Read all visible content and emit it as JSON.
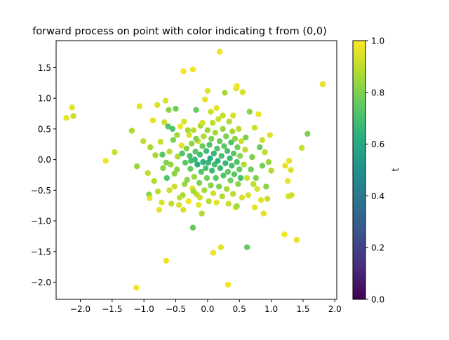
{
  "chart_data": {
    "type": "scatter",
    "title": "forward process on point with color indicating t from (0,0)",
    "xlabel": "",
    "ylabel": "",
    "xlim": [
      -2.38,
      2.03
    ],
    "ylim": [
      -2.28,
      1.94
    ],
    "xticks": [
      -2.0,
      -1.5,
      -1.0,
      -0.5,
      0.0,
      0.5,
      1.0,
      1.5,
      2.0
    ],
    "xtick_labels": [
      "−2.0",
      "−1.5",
      "−1.0",
      "−0.5",
      "0.0",
      "0.5",
      "1.0",
      "1.5",
      "2.0"
    ],
    "yticks": [
      -2.0,
      -1.5,
      -1.0,
      -0.5,
      0.0,
      0.5,
      1.0,
      1.5
    ],
    "ytick_labels": [
      "−2.0",
      "−1.5",
      "−1.0",
      "−0.5",
      "0.0",
      "0.5",
      "1.0",
      "1.5"
    ],
    "grid": false,
    "colormap": "viridis",
    "colorbar": {
      "label": "t",
      "range": [
        0.0,
        1.0
      ],
      "ticks": [
        0.0,
        0.2,
        0.4,
        0.6,
        0.8,
        1.0
      ],
      "tick_labels": [
        "0.0",
        "0.2",
        "0.4",
        "0.6",
        "0.8",
        "1.0"
      ]
    },
    "points": [
      [
        -2.22,
        0.68,
        0.96
      ],
      [
        -2.13,
        0.85,
        0.96
      ],
      [
        -2.11,
        0.71,
        0.92
      ],
      [
        -1.6,
        -0.02,
        0.98
      ],
      [
        -1.46,
        0.12,
        0.92
      ],
      [
        -1.19,
        0.47,
        0.88
      ],
      [
        -1.11,
        -0.11,
        0.84
      ],
      [
        -1.07,
        0.87,
        0.96
      ],
      [
        -1.01,
        0.3,
        0.9
      ],
      [
        -0.94,
        -0.22,
        0.9
      ],
      [
        -0.92,
        -0.57,
        0.82
      ],
      [
        -0.91,
        -0.63,
        0.96
      ],
      [
        -0.9,
        0.2,
        0.86
      ],
      [
        -0.86,
        0.64,
        0.96
      ],
      [
        -0.84,
        -0.35,
        0.88
      ],
      [
        -0.82,
        0.07,
        0.86
      ],
      [
        -0.79,
        0.89,
        0.94
      ],
      [
        -0.78,
        -0.52,
        0.9
      ],
      [
        -0.76,
        -0.82,
        0.96
      ],
      [
        -0.74,
        0.29,
        0.92
      ],
      [
        -0.72,
        -0.7,
        0.94
      ],
      [
        -0.7,
        -0.14,
        0.82
      ],
      [
        -0.68,
        0.61,
        0.92
      ],
      [
        -0.66,
        0.96,
        0.94
      ],
      [
        -0.64,
        -0.3,
        0.72
      ],
      [
        -0.62,
        0.54,
        0.72
      ],
      [
        -0.61,
        0.81,
        0.82
      ],
      [
        -0.6,
        0.13,
        0.9
      ],
      [
        -0.58,
        -0.08,
        0.84
      ],
      [
        -0.57,
        -0.72,
        0.9
      ],
      [
        -0.55,
        0.5,
        0.72
      ],
      [
        -0.54,
        0.32,
        0.8
      ],
      [
        -0.52,
        -0.44,
        0.92
      ],
      [
        -0.5,
        0.83,
        0.78
      ],
      [
        -0.48,
        -0.16,
        0.82
      ],
      [
        -0.47,
        0.05,
        0.88
      ],
      [
        -0.45,
        -0.74,
        0.94
      ],
      [
        -0.43,
        0.54,
        0.98
      ],
      [
        -0.41,
        0.23,
        0.96
      ],
      [
        -0.39,
        -0.58,
        0.86
      ],
      [
        -0.38,
        -0.82,
        0.94
      ],
      [
        -0.37,
        0.62,
        0.94
      ],
      [
        -0.35,
        -0.05,
        0.74
      ],
      [
        -0.33,
        0.18,
        0.8
      ],
      [
        -0.32,
        -0.33,
        0.82
      ],
      [
        -0.3,
        -0.68,
        0.98
      ],
      [
        -0.29,
        0.4,
        0.94
      ],
      [
        -0.28,
        0.06,
        0.7
      ],
      [
        -0.27,
        -0.15,
        0.76
      ],
      [
        -0.25,
        0.26,
        0.82
      ],
      [
        -0.24,
        -0.47,
        0.96
      ],
      [
        -0.23,
        -1.11,
        0.76
      ],
      [
        -0.22,
        0.48,
        0.9
      ],
      [
        -0.21,
        -0.28,
        0.84
      ],
      [
        -0.2,
        0.0,
        0.66
      ],
      [
        -0.19,
        0.13,
        0.74
      ],
      [
        -0.18,
        0.81,
        0.76
      ],
      [
        -0.17,
        -0.57,
        0.9
      ],
      [
        -0.16,
        -0.08,
        0.62
      ],
      [
        -0.15,
        0.3,
        0.92
      ],
      [
        -0.14,
        -0.74,
        0.96
      ],
      [
        -0.13,
        -0.38,
        0.8
      ],
      [
        -0.12,
        0.08,
        0.7
      ],
      [
        -0.11,
        0.55,
        0.86
      ],
      [
        -0.1,
        -0.2,
        0.72
      ],
      [
        -0.09,
        -0.88,
        0.88
      ],
      [
        -0.08,
        0.22,
        0.76
      ],
      [
        -0.07,
        -0.04,
        0.64
      ],
      [
        -0.06,
        0.38,
        0.88
      ],
      [
        -0.05,
        -0.5,
        0.86
      ],
      [
        -0.04,
        0.98,
        0.96
      ],
      [
        -0.03,
        -0.14,
        0.7
      ],
      [
        -0.02,
        0.14,
        0.68
      ],
      [
        -0.01,
        -0.3,
        0.78
      ],
      [
        0.0,
        0.48,
        0.84
      ],
      [
        0.01,
        -0.05,
        0.66
      ],
      [
        0.02,
        -0.68,
        0.9
      ],
      [
        0.03,
        0.24,
        0.72
      ],
      [
        0.04,
        0.02,
        0.62
      ],
      [
        0.05,
        -0.42,
        0.82
      ],
      [
        0.06,
        0.34,
        0.8
      ],
      [
        0.07,
        -0.18,
        0.68
      ],
      [
        0.08,
        0.6,
        0.9
      ],
      [
        0.09,
        -0.55,
        0.92
      ],
      [
        0.1,
        0.1,
        0.66
      ],
      [
        0.11,
        -0.08,
        0.7
      ],
      [
        0.12,
        0.44,
        0.86
      ],
      [
        0.13,
        -0.3,
        0.74
      ],
      [
        0.14,
        -0.7,
        0.96
      ],
      [
        0.15,
        0.18,
        0.72
      ],
      [
        0.16,
        -0.02,
        0.64
      ],
      [
        0.17,
        0.66,
        0.92
      ],
      [
        0.18,
        -0.44,
        0.8
      ],
      [
        0.19,
        0.3,
        0.76
      ],
      [
        0.2,
        -0.14,
        0.68
      ],
      [
        0.21,
        -1.43,
        0.96
      ],
      [
        0.22,
        0.06,
        0.7
      ],
      [
        0.23,
        -0.6,
        0.88
      ],
      [
        0.24,
        0.5,
        0.84
      ],
      [
        0.25,
        -0.26,
        0.72
      ],
      [
        0.26,
        0.22,
        0.74
      ],
      [
        0.27,
        1.09,
        0.86
      ],
      [
        0.28,
        -0.06,
        0.66
      ],
      [
        0.29,
        0.38,
        0.8
      ],
      [
        0.3,
        -0.48,
        0.86
      ],
      [
        0.31,
        0.14,
        0.7
      ],
      [
        0.32,
        -0.2,
        0.76
      ],
      [
        0.33,
        -0.72,
        0.92
      ],
      [
        0.34,
        0.62,
        0.88
      ],
      [
        0.35,
        0.02,
        0.68
      ],
      [
        0.36,
        -0.34,
        0.78
      ],
      [
        0.37,
        0.28,
        0.72
      ],
      [
        0.38,
        -0.1,
        0.7
      ],
      [
        0.39,
        0.46,
        0.86
      ],
      [
        0.4,
        -0.56,
        0.9
      ],
      [
        0.41,
        0.1,
        0.74
      ],
      [
        0.42,
        -0.24,
        0.74
      ],
      [
        0.43,
        0.34,
        0.82
      ],
      [
        0.44,
        -0.78,
        0.96
      ],
      [
        0.45,
        1.16,
        0.96
      ],
      [
        0.46,
        -0.04,
        0.72
      ],
      [
        0.47,
        0.2,
        0.78
      ],
      [
        0.48,
        -0.4,
        0.82
      ],
      [
        0.49,
        0.5,
        0.9
      ],
      [
        0.5,
        -0.16,
        0.76
      ],
      [
        0.51,
        0.06,
        0.82
      ],
      [
        0.52,
        -0.3,
        0.7
      ],
      [
        0.53,
        0.3,
        0.92
      ],
      [
        0.55,
        1.1,
        0.94
      ],
      [
        0.57,
        -0.08,
        0.88
      ],
      [
        0.59,
        0.16,
        0.9
      ],
      [
        0.62,
        -1.43,
        0.76
      ],
      [
        0.64,
        -0.58,
        0.94
      ],
      [
        0.66,
        0.78,
        0.82
      ],
      [
        0.68,
        -0.16,
        0.78
      ],
      [
        0.7,
        0.04,
        0.8
      ],
      [
        0.72,
        -0.4,
        0.9
      ],
      [
        0.74,
        0.52,
        0.92
      ],
      [
        0.76,
        -0.3,
        0.8
      ],
      [
        0.78,
        -0.48,
        0.94
      ],
      [
        0.8,
        0.74,
        0.98
      ],
      [
        0.82,
        0.2,
        0.76
      ],
      [
        0.84,
        -0.66,
        0.96
      ],
      [
        0.86,
        -0.1,
        0.78
      ],
      [
        0.88,
        -0.88,
        0.96
      ],
      [
        0.9,
        0.12,
        0.9
      ],
      [
        0.92,
        -0.44,
        0.82
      ],
      [
        0.94,
        -0.64,
        0.92
      ],
      [
        0.96,
        -0.04,
        0.84
      ],
      [
        0.98,
        0.4,
        0.96
      ],
      [
        1.0,
        -0.18,
        0.88
      ],
      [
        1.21,
        -1.22,
        0.98
      ],
      [
        1.22,
        -0.1,
        0.96
      ],
      [
        1.26,
        -0.35,
        0.96
      ],
      [
        1.27,
        -0.6,
        0.94
      ],
      [
        1.28,
        -0.02,
        0.96
      ],
      [
        1.31,
        -0.17,
        0.94
      ],
      [
        1.32,
        -0.58,
        0.92
      ],
      [
        1.4,
        -1.31,
        0.96
      ],
      [
        1.48,
        0.19,
        0.92
      ],
      [
        1.57,
        0.42,
        0.8
      ],
      [
        1.81,
        1.23,
        0.96
      ],
      [
        -0.38,
        1.44,
        0.98
      ],
      [
        -0.23,
        1.47,
        0.98
      ],
      [
        0.19,
        1.76,
        0.98
      ],
      [
        0.0,
        1.12,
        0.96
      ],
      [
        0.46,
        1.2,
        0.98
      ],
      [
        -0.65,
        -1.65,
        0.98
      ],
      [
        0.09,
        -1.52,
        0.98
      ],
      [
        -1.12,
        -2.09,
        0.98
      ],
      [
        0.32,
        -2.04,
        0.98
      ],
      [
        -0.71,
        0.08,
        0.74
      ],
      [
        -0.65,
        -0.05,
        0.8
      ],
      [
        -0.6,
        -0.5,
        0.92
      ],
      [
        -0.52,
        -0.23,
        0.82
      ],
      [
        -0.48,
        0.4,
        0.86
      ],
      [
        -0.44,
        -0.62,
        0.9
      ],
      [
        -0.4,
        0.1,
        0.72
      ],
      [
        -0.36,
        -0.4,
        0.84
      ],
      [
        -0.31,
        0.48,
        0.86
      ],
      [
        -0.26,
        -0.02,
        0.7
      ],
      [
        -0.22,
        -0.52,
        0.86
      ],
      [
        -0.18,
        0.34,
        0.8
      ],
      [
        -0.12,
        -0.62,
        0.92
      ],
      [
        -0.08,
        0.6,
        0.94
      ],
      [
        0.05,
        0.78,
        0.92
      ],
      [
        0.14,
        0.84,
        0.96
      ],
      [
        0.24,
        0.72,
        0.9
      ],
      [
        0.4,
        0.72,
        0.94
      ],
      [
        0.54,
        -0.62,
        0.94
      ],
      [
        0.6,
        0.36,
        0.8
      ],
      [
        0.46,
        -0.76,
        0.86
      ],
      [
        0.62,
        -0.3,
        0.92
      ],
      [
        0.74,
        -0.78,
        0.96
      ],
      [
        0.86,
        0.32,
        0.92
      ]
    ]
  }
}
